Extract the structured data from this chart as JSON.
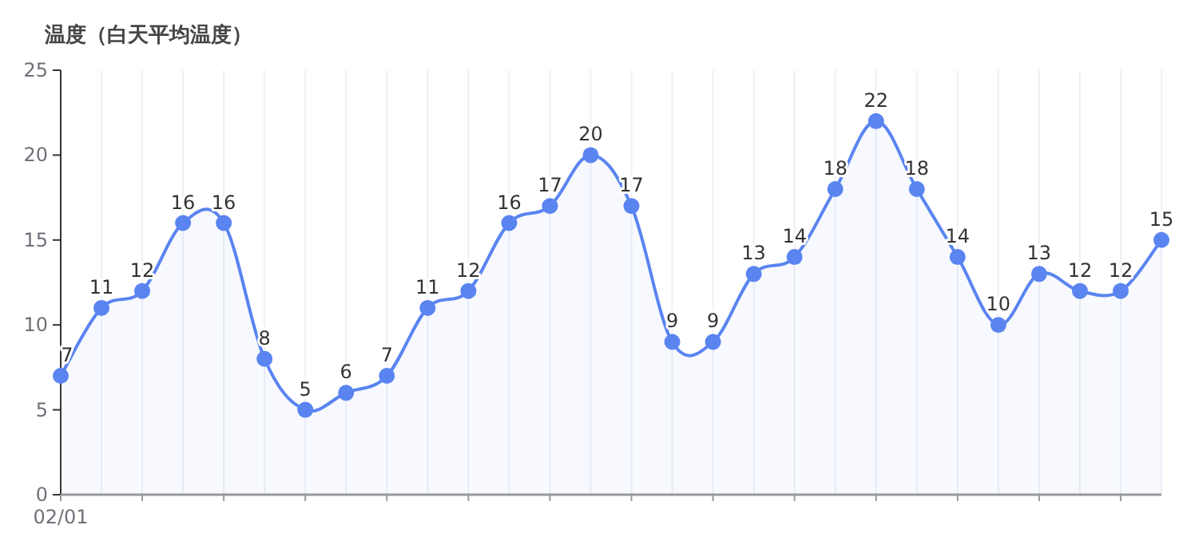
{
  "chart_data": {
    "type": "area",
    "ylabel": "温度（白天平均温度）",
    "categories": [
      "02/01",
      null,
      null,
      null,
      null,
      null,
      null,
      null,
      null,
      null,
      null,
      null,
      null,
      null,
      null,
      null,
      null,
      null,
      null,
      null,
      null,
      null,
      null,
      null,
      null,
      null,
      null,
      null
    ],
    "values": [
      7,
      11,
      12,
      16,
      16,
      8,
      5,
      6,
      7,
      11,
      12,
      16,
      17,
      20,
      17,
      9,
      9,
      13,
      14,
      18,
      22,
      18,
      14,
      10,
      13,
      12,
      12,
      15
    ],
    "color": "#5a84f0",
    "ylim": [
      0,
      25
    ],
    "yticks": [
      0,
      5,
      10,
      15,
      20,
      25
    ],
    "data_labels": true,
    "grid": "x",
    "marker": "circle"
  }
}
